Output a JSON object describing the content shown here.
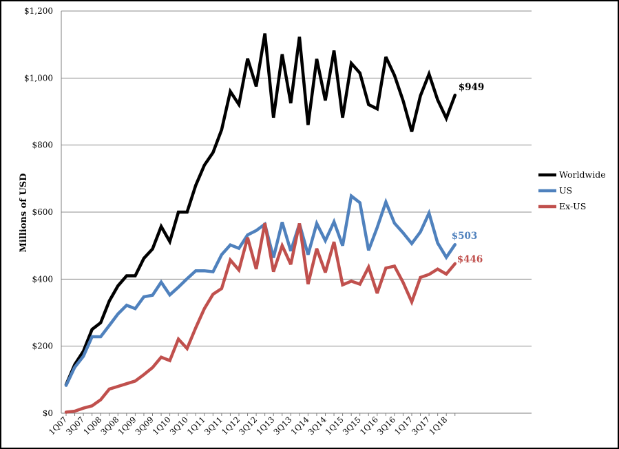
{
  "chart_data": {
    "type": "line",
    "ylabel": "Millions of USD",
    "ylim": [
      0,
      1200
    ],
    "y_ticks": [
      "$0",
      "$200",
      "$400",
      "$600",
      "$800",
      "$1,000",
      "$1,200"
    ],
    "y_tick_values": [
      0,
      200,
      400,
      600,
      800,
      1000,
      1200
    ],
    "grid": true,
    "legend_position": "right",
    "x": [
      "1Q07",
      "2Q07",
      "3Q07",
      "4Q07",
      "1Q08",
      "2Q08",
      "3Q08",
      "4Q08",
      "1Q09",
      "2Q09",
      "3Q09",
      "4Q09",
      "1Q10",
      "2Q10",
      "3Q10",
      "4Q10",
      "1Q11",
      "2Q11",
      "3Q11",
      "4Q11",
      "1Q12",
      "2Q12",
      "3Q12",
      "4Q12",
      "1Q13",
      "2Q13",
      "3Q13",
      "4Q13",
      "1Q14",
      "2Q14",
      "3Q14",
      "4Q14",
      "1Q15",
      "2Q15",
      "3Q15",
      "4Q15",
      "1Q16",
      "2Q16",
      "3Q16",
      "4Q16",
      "1Q17",
      "2Q17",
      "3Q17",
      "4Q17",
      "1Q18",
      "2Q18"
    ],
    "x_tick_labels": [
      "1Q07",
      "3Q07",
      "1Q08",
      "3Q08",
      "1Q09",
      "3Q09",
      "1Q10",
      "3Q10",
      "1Q11",
      "3Q11",
      "1Q12",
      "3Q12",
      "1Q13",
      "3Q13",
      "1Q14",
      "3Q14",
      "1Q15",
      "3Q15",
      "1Q16",
      "3Q16",
      "1Q17",
      "3Q17",
      "1Q18"
    ],
    "series": [
      {
        "name": "Worldwide",
        "color": "#000000",
        "end_label": "$949",
        "values": [
          85,
          145,
          185,
          250,
          270,
          335,
          380,
          410,
          410,
          462,
          490,
          557,
          512,
          600,
          600,
          680,
          740,
          778,
          846,
          960,
          921,
          1058,
          975,
          1133,
          882,
          1071,
          925,
          1123,
          860,
          1057,
          933,
          1082,
          882,
          1044,
          1015,
          921,
          908,
          1063,
          1008,
          932,
          840,
          947,
          1012,
          935,
          880,
          949
        ]
      },
      {
        "name": "US",
        "color": "#4f81bd",
        "end_label": "$503",
        "values": [
          83,
          137,
          170,
          228,
          228,
          262,
          296,
          322,
          312,
          347,
          352,
          391,
          353,
          376,
          401,
          425,
          425,
          422,
          473,
          502,
          492,
          532,
          545,
          564,
          464,
          570,
          484,
          565,
          473,
          566,
          515,
          571,
          500,
          648,
          628,
          486,
          554,
          630,
          567,
          538,
          506,
          541,
          597,
          508,
          465,
          503
        ]
      },
      {
        "name": "Ex-US",
        "color": "#c0504d",
        "end_label": "$446",
        "values": [
          3,
          6,
          15,
          22,
          40,
          72,
          80,
          88,
          96,
          115,
          136,
          167,
          157,
          221,
          193,
          255,
          312,
          355,
          372,
          457,
          427,
          524,
          430,
          567,
          422,
          500,
          444,
          566,
          385,
          491,
          420,
          511,
          383,
          394,
          385,
          436,
          358,
          433,
          439,
          390,
          332,
          405,
          414,
          430,
          415,
          446
        ]
      }
    ]
  }
}
